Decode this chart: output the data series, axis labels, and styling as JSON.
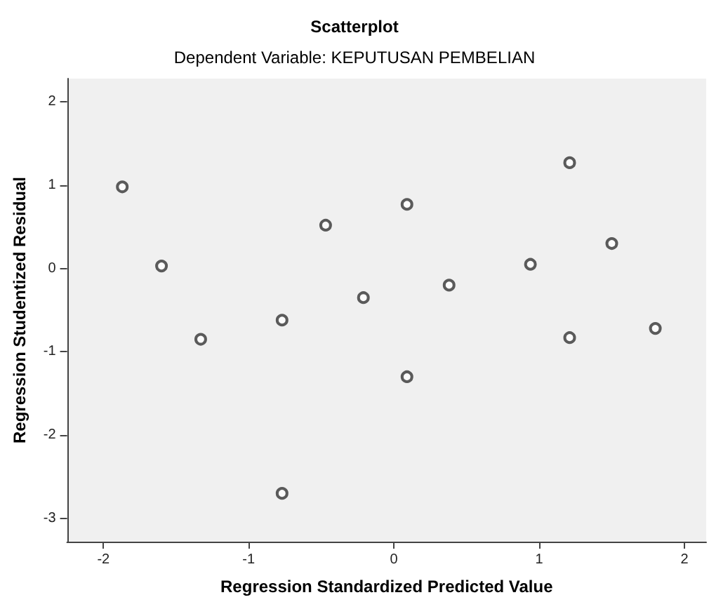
{
  "chart_data": {
    "type": "scatter",
    "title": "Scatterplot",
    "subtitle": "Dependent Variable: KEPUTUSAN PEMBELIAN",
    "xlabel": "Regression Standardized Predicted Value",
    "ylabel": "Regression Studentized Residual",
    "x": [
      -1.87,
      -1.6,
      -1.33,
      -0.77,
      -0.47,
      -0.21,
      0.09,
      0.09,
      0.38,
      0.94,
      1.21,
      1.21,
      1.5,
      1.8,
      -0.77
    ],
    "series": [
      {
        "color": "#333333",
        "values": [
          0.98,
          0.03,
          -0.85,
          -0.62,
          0.52,
          -0.35,
          0.77,
          -1.3,
          -0.2,
          0.05,
          1.27,
          -0.83,
          0.3,
          -0.72,
          -2.7
        ]
      }
    ],
    "xlim": [
      -2.25,
      2.15
    ],
    "xticks": [
      -2,
      -1,
      0,
      1,
      2
    ],
    "ylim": [
      -3.28,
      2.28
    ],
    "yticks": [
      -3,
      -2,
      -1,
      0,
      1,
      2
    ],
    "grid": false,
    "marker": "circle"
  }
}
